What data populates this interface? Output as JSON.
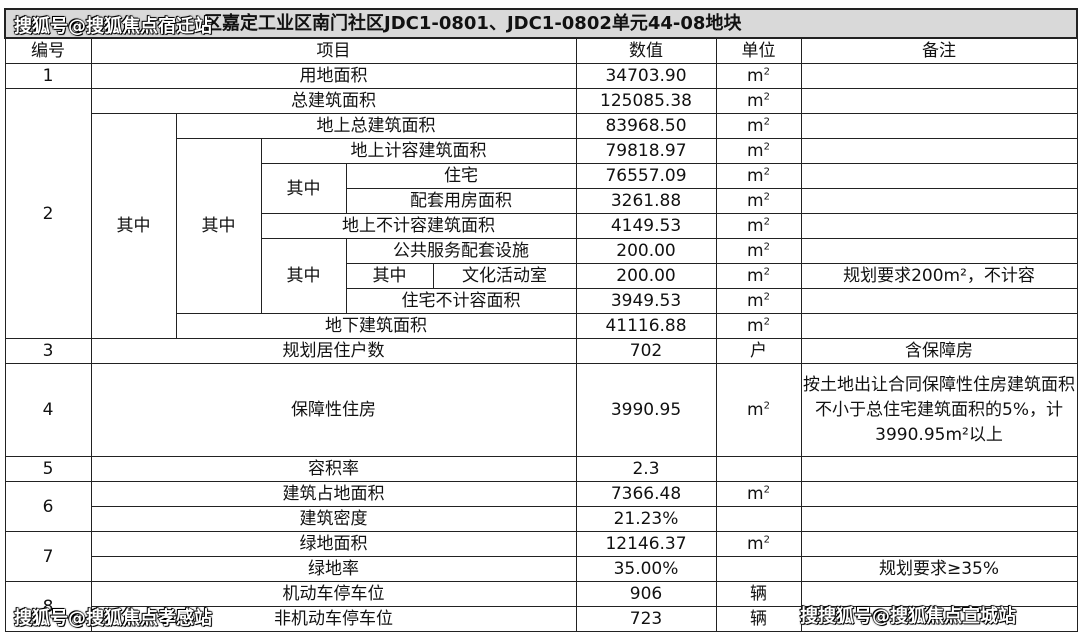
{
  "title": "区嘉定工业区南门社区JDC1-0801、JDC1-0802单元44-08地块",
  "header": {
    "no": "编号",
    "item": "项目",
    "value": "数值",
    "unit": "单位",
    "remark": "备注"
  },
  "unit_m2": "m",
  "unit_m2_sup": "2",
  "rows": {
    "r1": {
      "no": "1",
      "item": "用地面积",
      "value": "34703.90"
    },
    "r2": {
      "no": "2",
      "item": "总建筑面积",
      "value": "125085.38"
    },
    "r2a": {
      "item": "地上总建筑面积",
      "value": "83968.50"
    },
    "r2b": {
      "item": "地上计容建筑面积",
      "value": "79818.97"
    },
    "r2c": {
      "item": "住宅",
      "value": "76557.09"
    },
    "r2d": {
      "item": "配套用房面积",
      "value": "3261.88"
    },
    "r2e": {
      "item": "地上不计容建筑面积",
      "value": "4149.53"
    },
    "r2f": {
      "item": "公共服务配套设施",
      "value": "200.00"
    },
    "r2g": {
      "item": "文化活动室",
      "value": "200.00",
      "remark": "规划要求200m²，不计容"
    },
    "r2h": {
      "item": "住宅不计容面积",
      "value": "3949.53"
    },
    "r2i": {
      "item": "地下建筑面积",
      "value": "41116.88"
    },
    "r3": {
      "no": "3",
      "item": "规划居住户数",
      "value": "702",
      "unit": "户",
      "remark": "含保障房"
    },
    "r4": {
      "no": "4",
      "item": "保障性住房",
      "value": "3990.95",
      "remark": "按土地出让合同保障性住房建筑面积不小于总住宅建筑面积的5%，计3990.95m²以上"
    },
    "r5": {
      "no": "5",
      "item": "容积率",
      "value": "2.3"
    },
    "r6a": {
      "no": "6",
      "item": "建筑占地面积",
      "value": "7366.48"
    },
    "r6b": {
      "item": "建筑密度",
      "value": "21.23%"
    },
    "r7a": {
      "no": "7",
      "item": "绿地面积",
      "value": "12146.37"
    },
    "r7b": {
      "item": "绿地率",
      "value": "35.00%",
      "remark": "规划要求≥35%"
    },
    "r8a": {
      "no": "8",
      "item": "机动车停车位",
      "value": "906",
      "unit": "辆"
    },
    "r8b": {
      "item": "非机动车停车位",
      "value": "723",
      "unit": "辆"
    }
  },
  "qizhong": "其中",
  "watermarks": [
    "搜狐号@搜狐焦点宿迁站",
    "搜狐号@搜狐焦点孝感站",
    "搜搜狐号@搜狐焦点宣城站"
  ]
}
